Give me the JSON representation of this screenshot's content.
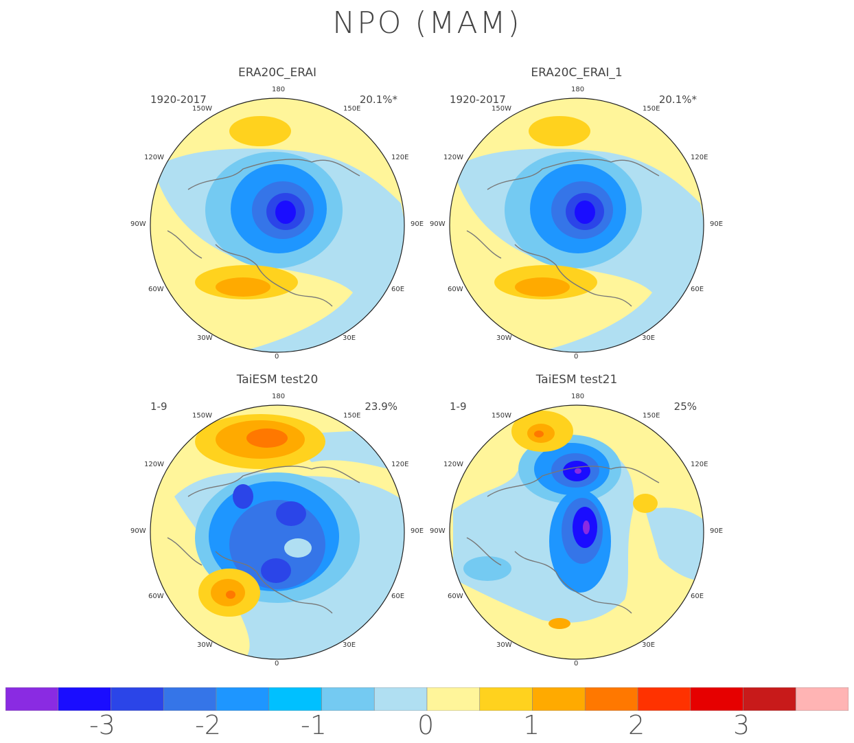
{
  "title": "NPO (MAM)",
  "panels": [
    {
      "title": "ERA20C_ERAI",
      "period": "1920-2017",
      "variance": "20.1%*",
      "lon_labels": {
        "top": "180",
        "bottom": "0",
        "n150w": "150W",
        "n150e": "150E",
        "n120w": "120W",
        "n120e": "120E",
        "n90w": "90W",
        "n90e": "90E",
        "n60w": "60W",
        "n60e": "60E",
        "n30w": "30W",
        "n30e": "30E"
      }
    },
    {
      "title": "ERA20C_ERAI_1",
      "period": "1920-2017",
      "variance": "20.1%*",
      "lon_labels": {
        "top": "180",
        "bottom": "0",
        "n150w": "150W",
        "n150e": "150E",
        "n120w": "120W",
        "n120e": "120E",
        "n90w": "90W",
        "n90e": "90E",
        "n60w": "60W",
        "n60e": "60E",
        "n30w": "30W",
        "n30e": "30E"
      }
    },
    {
      "title": "TaiESM test20",
      "period": "1-9",
      "variance": "23.9%",
      "lon_labels": {
        "top": "180",
        "bottom": "0",
        "n150w": "150W",
        "n150e": "150E",
        "n120w": "120W",
        "n120e": "120E",
        "n90w": "90W",
        "n90e": "90E",
        "n60w": "60W",
        "n60e": "60E",
        "n30w": "30W",
        "n30e": "30E"
      }
    },
    {
      "title": "TaiESM test21",
      "period": "1-9",
      "variance": "25%",
      "lon_labels": {
        "top": "180",
        "bottom": "0",
        "n150w": "150W",
        "n150e": "150E",
        "n120w": "120W",
        "n120e": "120E",
        "n90w": "90W",
        "n90e": "90E",
        "n60w": "60W",
        "n60e": "60E",
        "n30w": "30W",
        "n30e": "30E"
      }
    }
  ],
  "colorbar": {
    "colors": [
      "#8a2be2",
      "#1a0dff",
      "#2b45e8",
      "#3575e8",
      "#1e96ff",
      "#00c0ff",
      "#74caf2",
      "#b0dff2",
      "#fff59a",
      "#ffd21e",
      "#ffaa00",
      "#ff7800",
      "#ff3200",
      "#e60000",
      "#c81a1a",
      "#ffb4b4"
    ],
    "labels": [
      "-3",
      "-2",
      "-1",
      "0",
      "1",
      "2",
      "3"
    ]
  }
}
